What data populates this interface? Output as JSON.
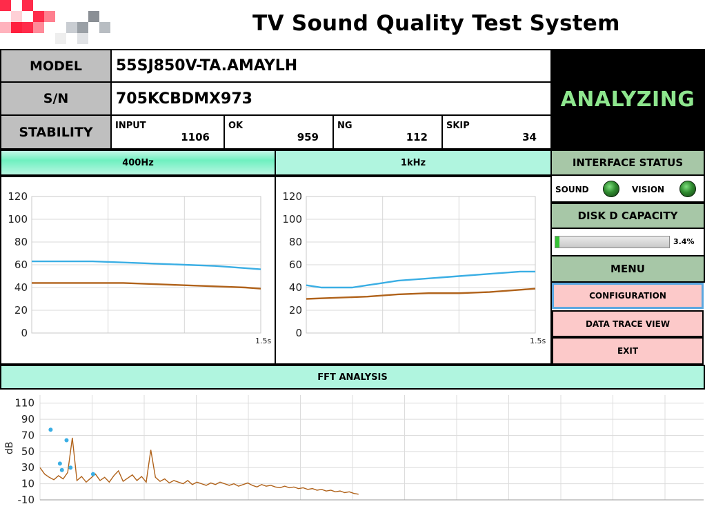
{
  "header": {
    "title": "TV Sound Quality Test System"
  },
  "info": {
    "model_label": "MODEL",
    "model_value": "55SJ850V-TA.AMAYLH",
    "sn_label": "S/N",
    "sn_value": "705KCBDMX973",
    "stability_label": "STABILITY",
    "stats": [
      {
        "name": "INPUT",
        "value": "1106"
      },
      {
        "name": "OK",
        "value": "959"
      },
      {
        "name": "NG",
        "value": "112"
      },
      {
        "name": "SKIP",
        "value": "34"
      }
    ],
    "status": "ANALYZING"
  },
  "colors": {
    "series_blue": "#3aaee4",
    "series_brown": "#b0621a",
    "status_green": "#8ee68e",
    "mint": "#b0f5df",
    "sage": "#a7c7a7",
    "button_pink": "#fcc9c9"
  },
  "sidebar": {
    "interface_title": "INTERFACE STATUS",
    "sound_label": "SOUND",
    "vision_label": "VISION",
    "disk_title": "DISK D CAPACITY",
    "disk_percent_text": "3.4%",
    "disk_fraction": 0.034,
    "menu_title": "MENU",
    "menu_items": [
      "CONFIGURATION",
      "DATA TRACE VIEW",
      "EXIT"
    ]
  },
  "fft_title": "FFT ANALYSIS",
  "chart_data": [
    {
      "type": "line",
      "title": "400Hz",
      "x_end_label": "1.5s",
      "ylim": [
        0,
        120
      ],
      "yticks": [
        0,
        20,
        40,
        60,
        80,
        100,
        120
      ],
      "grid": true,
      "series": [
        {
          "color": "#3aaee4",
          "x": [
            0,
            0.2,
            0.4,
            0.6,
            0.8,
            1.0,
            1.2,
            1.4,
            1.5
          ],
          "values": [
            63,
            63,
            63,
            62,
            61,
            60,
            59,
            57,
            56
          ]
        },
        {
          "color": "#b0621a",
          "x": [
            0,
            0.2,
            0.4,
            0.6,
            0.8,
            1.0,
            1.2,
            1.4,
            1.5
          ],
          "values": [
            44,
            44,
            44,
            44,
            43,
            42,
            41,
            40,
            39
          ]
        }
      ]
    },
    {
      "type": "line",
      "title": "1kHz",
      "x_end_label": "1.5s",
      "ylim": [
        0,
        120
      ],
      "yticks": [
        0,
        20,
        40,
        60,
        80,
        100,
        120
      ],
      "grid": true,
      "series": [
        {
          "color": "#3aaee4",
          "x": [
            0,
            0.1,
            0.2,
            0.3,
            0.4,
            0.5,
            0.6,
            0.8,
            1.0,
            1.2,
            1.4,
            1.5
          ],
          "values": [
            42,
            40,
            40,
            40,
            42,
            44,
            46,
            48,
            50,
            52,
            54,
            54
          ]
        },
        {
          "color": "#b0621a",
          "x": [
            0,
            0.2,
            0.4,
            0.6,
            0.8,
            1.0,
            1.2,
            1.4,
            1.5
          ],
          "values": [
            30,
            31,
            32,
            34,
            35,
            35,
            36,
            38,
            39
          ]
        }
      ]
    },
    {
      "type": "line",
      "title": "FFT ANALYSIS",
      "ylabel": "dB",
      "ylim": [
        -10,
        120
      ],
      "yticks": [
        -10,
        10,
        30,
        50,
        70,
        90,
        110
      ],
      "grid": true,
      "series": [
        {
          "color": "#b0621a",
          "values": [
            30,
            22,
            18,
            15,
            20,
            16,
            24,
            67,
            14,
            19,
            12,
            17,
            22,
            14,
            18,
            12,
            20,
            26,
            13,
            17,
            21,
            14,
            19,
            12,
            52,
            18,
            13,
            16,
            11,
            14,
            12,
            10,
            14,
            9,
            12,
            10,
            8,
            11,
            9,
            12,
            10,
            8,
            10,
            7,
            9,
            11,
            8,
            6,
            9,
            7,
            8,
            6,
            5,
            7,
            5,
            6,
            4,
            5,
            3,
            4,
            2,
            3,
            1,
            2,
            0,
            1,
            -1,
            0,
            -2,
            -3
          ]
        },
        {
          "color": "#3aaee4",
          "type": "scatter",
          "x": [
            0.016,
            0.03,
            0.033,
            0.04,
            0.046,
            0.08
          ],
          "values": [
            77,
            35,
            27,
            64,
            30,
            22
          ]
        }
      ]
    }
  ]
}
